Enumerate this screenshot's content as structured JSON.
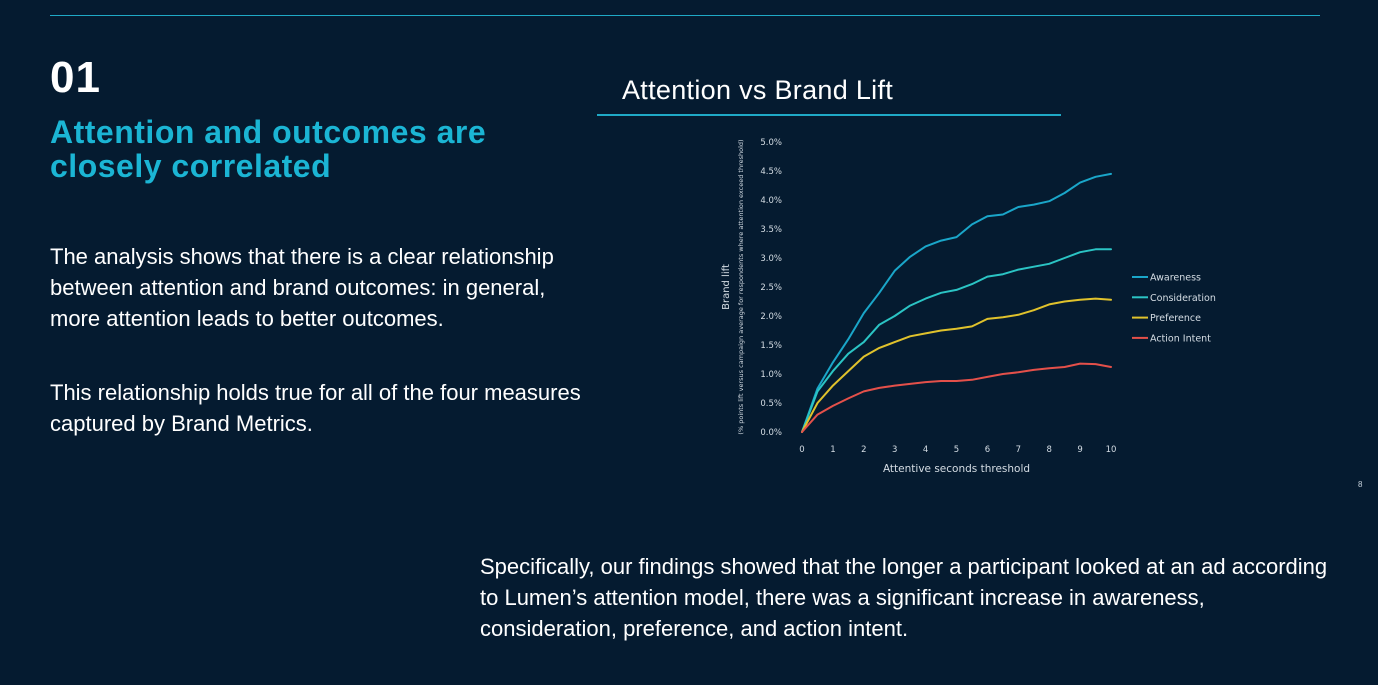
{
  "section_number": "01",
  "headline": "Attention and outcomes are closely correlated",
  "paragraphs": [
    "The analysis shows that there is a clear relationship between attention and brand outcomes: in general, more attention leads to better outcomes.",
    "This relationship holds true for all of the four measures captured by Brand Metrics."
  ],
  "summary": "Specifically, our findings showed that the longer a participant looked at an ad according to Lumen’s attention model, there was a significant increase in awareness, consideration, preference, and action intent.",
  "page_number": "8",
  "colors": {
    "background": "#051b30",
    "accent": "#1bb5d4",
    "awareness": "#1aa6c9",
    "consideration": "#2bc4c4",
    "preference": "#e0c22c",
    "action_intent": "#e4504a"
  },
  "chart_data": {
    "type": "line",
    "title": "Attention vs Brand Lift",
    "xlabel": "Attentive seconds threshold",
    "ylabel": "Brand lift",
    "ylabel_sub": "(% points lift versus campaign average for respondents where attention exceed threshold)",
    "xlim": [
      0,
      10
    ],
    "ylim": [
      0,
      5
    ],
    "x_ticks": [
      "0",
      "1",
      "2",
      "3",
      "4",
      "5",
      "6",
      "7",
      "8",
      "9",
      "10"
    ],
    "y_ticks": [
      "0.0%",
      "0.5%",
      "1.0%",
      "1.5%",
      "2.0%",
      "2.5%",
      "3.0%",
      "3.5%",
      "4.0%",
      "4.5%",
      "5.0%"
    ],
    "legend_position": "right",
    "x": [
      0,
      0.5,
      1,
      1.5,
      2,
      2.5,
      3,
      3.5,
      4,
      4.5,
      5,
      5.5,
      6,
      6.5,
      7,
      7.5,
      8,
      8.5,
      9,
      9.5,
      10
    ],
    "series": [
      {
        "name": "Awareness",
        "color": "#1aa6c9",
        "values": [
          0,
          0.75,
          1.2,
          1.6,
          2.05,
          2.4,
          2.78,
          3.02,
          3.2,
          3.3,
          3.36,
          3.58,
          3.72,
          3.75,
          3.88,
          3.92,
          3.98,
          4.12,
          4.3,
          4.4,
          4.45
        ]
      },
      {
        "name": "Consideration",
        "color": "#2bc4c4",
        "values": [
          0,
          0.7,
          1.05,
          1.35,
          1.55,
          1.85,
          2.0,
          2.18,
          2.3,
          2.4,
          2.45,
          2.55,
          2.68,
          2.72,
          2.8,
          2.85,
          2.9,
          3.0,
          3.1,
          3.15,
          3.15
        ]
      },
      {
        "name": "Preference",
        "color": "#e0c22c",
        "values": [
          0,
          0.5,
          0.8,
          1.05,
          1.3,
          1.45,
          1.55,
          1.65,
          1.7,
          1.75,
          1.78,
          1.82,
          1.95,
          1.98,
          2.02,
          2.1,
          2.2,
          2.25,
          2.28,
          2.3,
          2.28
        ]
      },
      {
        "name": "Action Intent",
        "color": "#e4504a",
        "values": [
          0,
          0.3,
          0.45,
          0.58,
          0.7,
          0.76,
          0.8,
          0.83,
          0.86,
          0.88,
          0.88,
          0.9,
          0.95,
          1.0,
          1.03,
          1.07,
          1.1,
          1.12,
          1.18,
          1.17,
          1.12
        ]
      }
    ]
  }
}
